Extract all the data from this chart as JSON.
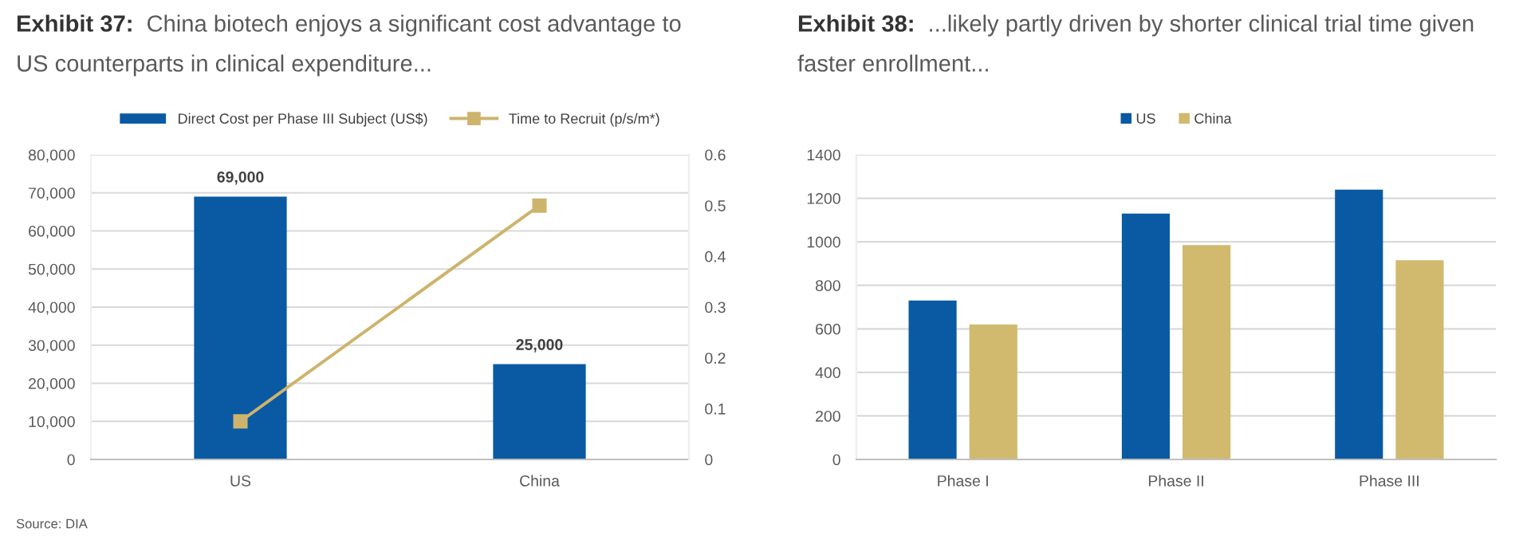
{
  "chart_data": [
    {
      "type": "bar",
      "title": "Exhibit 37: China biotech enjoys a significant cost advantage to\nUS counterparts in clinical expenditure...",
      "categories": [
        "US",
        "China"
      ],
      "series": [
        {
          "name": "Direct Cost per Phase III Subject (US$)",
          "color": "#0a5aa3",
          "values": [
            69000,
            25000
          ],
          "value_labels": [
            "69,000",
            "25,000"
          ]
        },
        {
          "name": "Time to Recruit (p/s/m*)",
          "type": "line",
          "axis": "y2",
          "color": "#cdb46c",
          "marker": "square",
          "values": [
            0.075,
            0.5
          ]
        }
      ],
      "ylim": [
        0,
        80000
      ],
      "yticks": [
        0,
        {
          "value": 10000,
          "label": "10,000"
        },
        {
          "value": 20000,
          "label": "20,000"
        },
        {
          "value": 30000,
          "label": "30,000"
        },
        {
          "value": 40000,
          "label": "40,000"
        },
        {
          "value": 50000,
          "label": "50,000"
        },
        {
          "value": 60000,
          "label": "60,000"
        },
        {
          "value": 70000,
          "label": "70,000"
        },
        {
          "value": 80000,
          "label": "80,000"
        }
      ],
      "y2lim": [
        0,
        0.6
      ],
      "y2ticks": [
        0,
        0.1,
        0.2,
        0.3,
        0.4,
        0.5,
        0.6
      ],
      "grid": "y",
      "legend": "top",
      "annotations": [
        "Source: DIA"
      ]
    },
    {
      "type": "bar",
      "title": "Exhibit 38: ...likely partly driven by shorter clinical trial time given\nfaster enrollment...",
      "categories": [
        "Phase I",
        "Phase II",
        "Phase III"
      ],
      "series": [
        {
          "name": "US",
          "color": "#0a5aa3",
          "values": [
            730,
            1130,
            1240
          ]
        },
        {
          "name": "China",
          "color": "#d1b96e",
          "values": [
            620,
            985,
            915
          ]
        }
      ],
      "ylim": [
        0,
        1400
      ],
      "yticks": [
        0,
        200,
        400,
        600,
        800,
        1000,
        1200,
        1400
      ],
      "grid": "y",
      "legend": "top"
    }
  ]
}
